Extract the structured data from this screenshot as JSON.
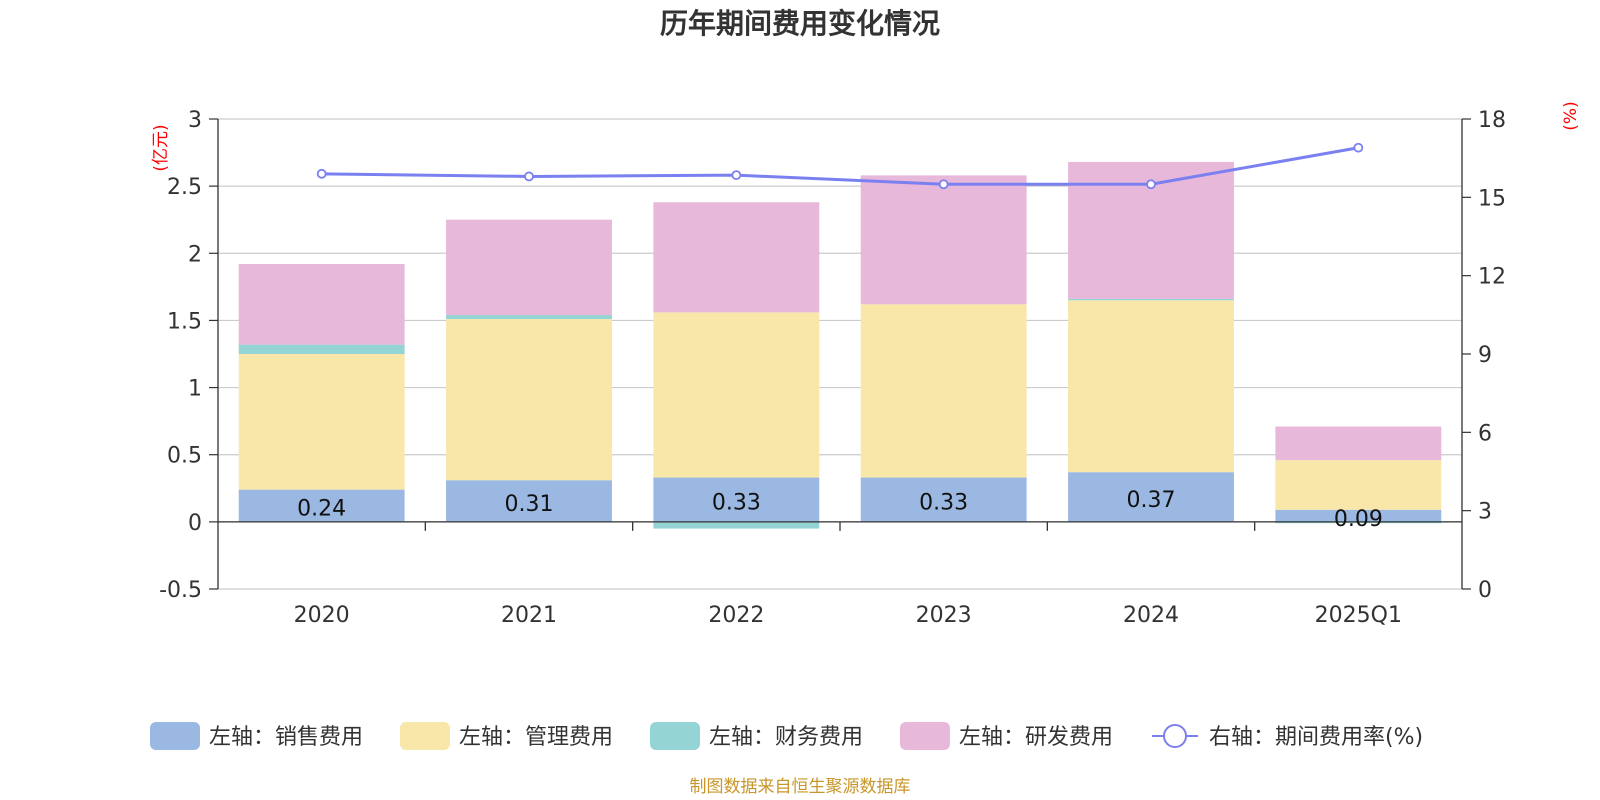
{
  "chart_data": {
    "type": "bar",
    "title": "历年期间费用变化情况",
    "categories": [
      "2020",
      "2021",
      "2022",
      "2023",
      "2024",
      "2025Q1"
    ],
    "left_axis": {
      "unit": "(亿元)",
      "ylim": [
        -0.5,
        3
      ],
      "ticks": [
        "3",
        "2.5",
        "2",
        "1.5",
        "1",
        "0.5",
        "0",
        "-0.5"
      ]
    },
    "right_axis": {
      "unit": "(%)",
      "ylim": [
        0,
        18
      ],
      "ticks": [
        "18",
        "15",
        "12",
        "9",
        "6",
        "3",
        "0"
      ]
    },
    "series": [
      {
        "name": "左轴：销售费用",
        "type": "bar",
        "stack": true,
        "axis": "left",
        "color": "#9bb8e2",
        "values": [
          0.24,
          0.31,
          0.33,
          0.33,
          0.37,
          0.09
        ],
        "labels": [
          "0.24",
          "0.31",
          "0.33",
          "0.33",
          "0.37",
          "0.09"
        ]
      },
      {
        "name": "左轴：管理费用",
        "type": "bar",
        "stack": true,
        "axis": "left",
        "color": "#f8e7a9",
        "values": [
          1.01,
          1.2,
          1.23,
          1.29,
          1.28,
          0.37
        ]
      },
      {
        "name": "左轴：财务费用",
        "type": "bar",
        "stack": true,
        "axis": "left",
        "color": "#94d4d4",
        "values": [
          0.07,
          0.03,
          -0.05,
          0.0,
          0.01,
          -0.01
        ]
      },
      {
        "name": "左轴：研发费用",
        "type": "bar",
        "stack": true,
        "axis": "left",
        "color": "#e7b8d9",
        "values": [
          0.6,
          0.71,
          0.82,
          0.96,
          1.02,
          0.25
        ]
      },
      {
        "name": "右轴：期间费用率(%)",
        "type": "line",
        "axis": "right",
        "color": "#7b80f0",
        "values": [
          15.9,
          15.8,
          15.85,
          15.5,
          15.5,
          16.9
        ]
      }
    ],
    "grid": true,
    "legend_position": "bottom"
  },
  "source": "制图数据来自恒生聚源数据库"
}
